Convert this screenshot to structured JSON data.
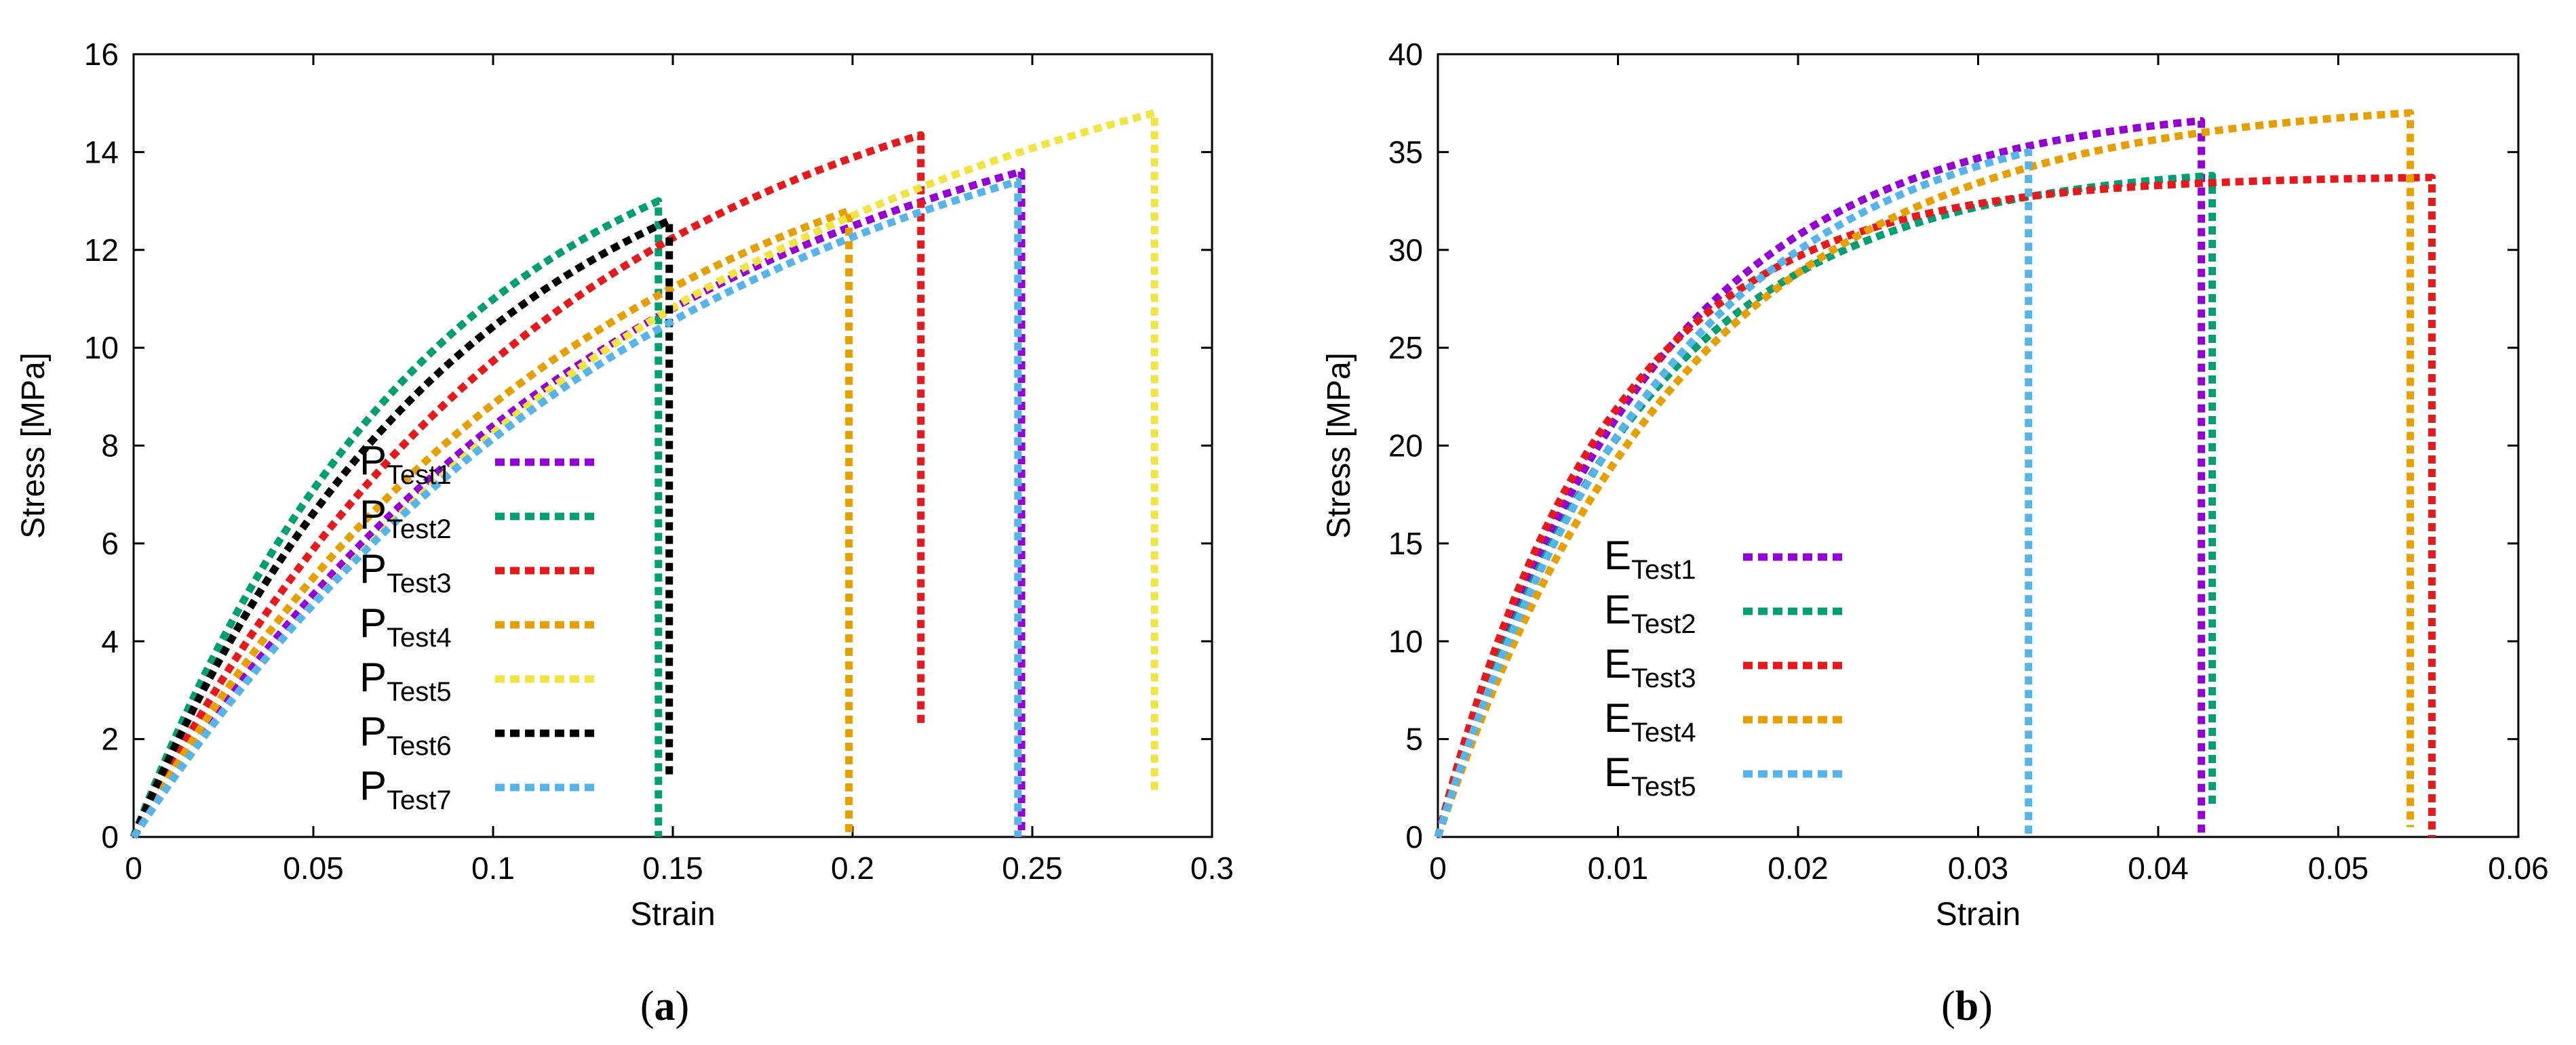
{
  "chart_data": [
    {
      "id": "a",
      "type": "line",
      "caption": {
        "open": "(",
        "letter": "a",
        "close": ")"
      },
      "xlabel": "Strain",
      "ylabel": "Stress [MPa]",
      "xlim": [
        0,
        0.3
      ],
      "ylim": [
        0,
        16
      ],
      "xticks": [
        "0",
        "0.05",
        "0.1",
        "0.15",
        "0.2",
        "0.25",
        "0.3"
      ],
      "yticks": [
        "0",
        "2",
        "4",
        "6",
        "8",
        "10",
        "12",
        "14",
        "16"
      ],
      "legend_position": "center-left",
      "series": [
        {
          "name": "P",
          "sub": "Test1",
          "color": "#9400d3",
          "x_fail": 0.247,
          "peak": 13.6,
          "k": 7.2,
          "drop_to": 0.0
        },
        {
          "name": "P",
          "sub": "Test2",
          "color": "#009e73",
          "x_fail": 0.146,
          "peak": 13.0,
          "k": 12.0,
          "drop_to": 0.0
        },
        {
          "name": "P",
          "sub": "Test3",
          "color": "#e41a1c",
          "x_fail": 0.219,
          "peak": 14.35,
          "k": 8.5,
          "drop_to": 2.3
        },
        {
          "name": "P",
          "sub": "Test4",
          "color": "#e69f00",
          "x_fail": 0.199,
          "peak": 12.8,
          "k": 8.0,
          "drop_to": 0.0
        },
        {
          "name": "P",
          "sub": "Test5",
          "color": "#f0e442",
          "x_fail": 0.284,
          "peak": 14.8,
          "k": 6.2,
          "drop_to": 0.9
        },
        {
          "name": "P",
          "sub": "Test6",
          "color": "#000000",
          "x_fail": 0.149,
          "peak": 12.6,
          "k": 11.0,
          "drop_to": 1.2
        },
        {
          "name": "P",
          "sub": "Test7",
          "color": "#56b4e9",
          "x_fail": 0.246,
          "peak": 13.4,
          "k": 6.8,
          "drop_to": 0.0
        }
      ]
    },
    {
      "id": "b",
      "type": "line",
      "caption": {
        "open": "(",
        "letter": "b",
        "close": ")"
      },
      "xlabel": "Strain",
      "ylabel": "Stress [MPa]",
      "xlim": [
        0,
        0.06
      ],
      "ylim": [
        0,
        40
      ],
      "xticks": [
        "0",
        "0.01",
        "0.02",
        "0.03",
        "0.04",
        "0.05",
        "0.06"
      ],
      "yticks": [
        "0",
        "5",
        "10",
        "15",
        "20",
        "25",
        "30",
        "35",
        "40"
      ],
      "legend_position": "bottom-left",
      "series": [
        {
          "name": "E",
          "sub": "Test1",
          "color": "#9400d3",
          "x_fail": 0.0424,
          "peak": 36.6,
          "k": 85,
          "drop_to": 0.0
        },
        {
          "name": "E",
          "sub": "Test2",
          "color": "#009e73",
          "x_fail": 0.043,
          "peak": 33.8,
          "k": 90,
          "drop_to": 1.5
        },
        {
          "name": "E",
          "sub": "Test3",
          "color": "#e41a1c",
          "x_fail": 0.0552,
          "peak": 33.7,
          "k": 105,
          "drop_to": 0.0
        },
        {
          "name": "E",
          "sub": "Test4",
          "color": "#e69f00",
          "x_fail": 0.054,
          "peak": 37.0,
          "k": 72,
          "drop_to": 0.5
        },
        {
          "name": "E",
          "sub": "Test5",
          "color": "#56b4e9",
          "x_fail": 0.0328,
          "peak": 35.0,
          "k": 78,
          "drop_to": 0.0
        }
      ]
    }
  ]
}
